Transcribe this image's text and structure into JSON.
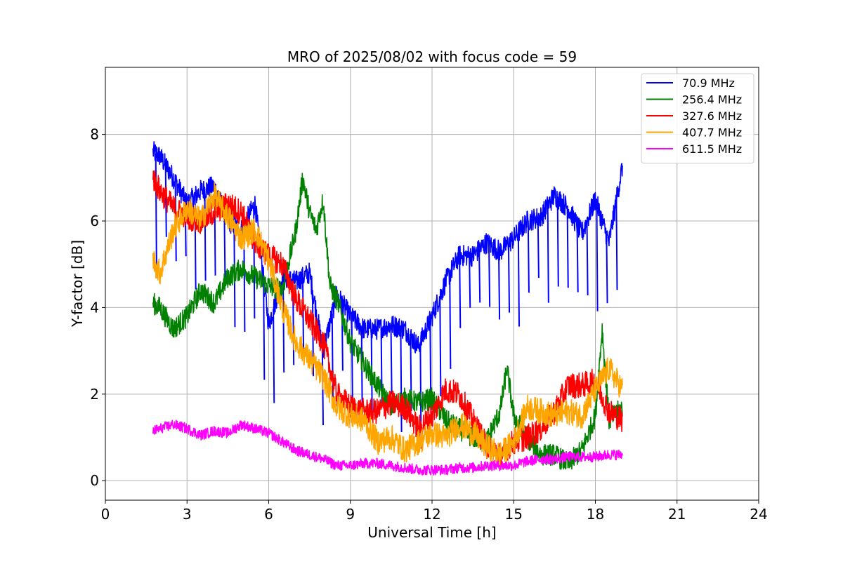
{
  "chart_data": {
    "type": "line",
    "title": "MRO of 2025/08/02 with focus code = 59",
    "xlabel": "Universal Time [h]",
    "ylabel": "Y-factor [dB]",
    "xlim": [
      0,
      24
    ],
    "ylim": [
      -0.45,
      9.55
    ],
    "xticks": [
      0,
      3,
      6,
      9,
      12,
      15,
      18,
      21,
      24
    ],
    "yticks": [
      0,
      2,
      4,
      6,
      8
    ],
    "grid": true,
    "legend_position": "top-right",
    "series": [
      {
        "name": " 70.9 MHz",
        "color": "#0000ff",
        "band": 0.25,
        "x": [
          1.75,
          2.0,
          2.5,
          3.0,
          3.5,
          4.0,
          4.5,
          5.0,
          5.5,
          6.0,
          6.5,
          7.0,
          7.5,
          8.0,
          8.5,
          9.0,
          9.5,
          10.0,
          10.5,
          11.0,
          11.5,
          12.0,
          12.5,
          13.0,
          13.5,
          14.0,
          14.5,
          15.0,
          15.5,
          16.0,
          16.5,
          17.0,
          17.5,
          18.0,
          18.5,
          19.0
        ],
        "y": [
          7.6,
          7.5,
          7.0,
          6.4,
          6.7,
          6.8,
          6.0,
          5.8,
          6.4,
          3.6,
          4.7,
          4.6,
          4.8,
          3.0,
          4.3,
          3.8,
          3.5,
          3.5,
          3.6,
          3.5,
          3.1,
          3.8,
          4.6,
          5.2,
          5.2,
          5.5,
          5.3,
          5.6,
          6.0,
          6.1,
          6.6,
          6.3,
          5.7,
          6.5,
          5.5,
          7.3
        ]
      },
      {
        "name": "256.4 MHz",
        "color": "#008000",
        "band": 0.25,
        "x": [
          1.75,
          2.0,
          2.5,
          3.0,
          3.5,
          4.0,
          4.5,
          5.0,
          5.5,
          6.0,
          6.5,
          7.0,
          7.25,
          7.5,
          7.75,
          8.0,
          8.25,
          8.5,
          9.0,
          9.5,
          10.0,
          10.5,
          11.0,
          11.5,
          12.0,
          12.5,
          13.0,
          13.5,
          14.0,
          14.5,
          14.75,
          15.0,
          15.5,
          16.0,
          16.5,
          17.0,
          17.5,
          18.0,
          18.25,
          18.5,
          19.0
        ],
        "y": [
          4.1,
          4.0,
          3.5,
          3.8,
          4.4,
          4.1,
          4.7,
          4.9,
          4.7,
          4.5,
          4.4,
          5.8,
          7.0,
          6.2,
          5.8,
          6.5,
          4.5,
          4.2,
          3.2,
          2.7,
          2.2,
          1.7,
          1.9,
          1.8,
          1.9,
          1.4,
          1.2,
          1.0,
          0.9,
          1.6,
          2.6,
          1.5,
          1.0,
          0.6,
          0.6,
          0.4,
          0.7,
          1.5,
          3.5,
          1.4,
          1.7
        ]
      },
      {
        "name": "327.6 MHz",
        "color": "#ff0000",
        "band": 0.3,
        "x": [
          1.75,
          2.0,
          2.5,
          3.0,
          3.5,
          4.0,
          4.5,
          5.0,
          5.5,
          6.0,
          6.5,
          7.0,
          7.5,
          8.0,
          8.5,
          9.0,
          9.5,
          10.0,
          10.5,
          11.0,
          11.5,
          12.0,
          12.5,
          13.0,
          13.5,
          14.0,
          14.5,
          15.0,
          15.5,
          16.0,
          16.5,
          17.0,
          17.5,
          18.0,
          18.5,
          19.0
        ],
        "y": [
          7.0,
          6.7,
          6.3,
          6.1,
          6.0,
          6.2,
          6.4,
          6.2,
          5.5,
          5.2,
          5.0,
          4.2,
          3.7,
          3.2,
          2.0,
          1.7,
          1.6,
          1.6,
          1.8,
          1.7,
          1.2,
          1.5,
          2.1,
          2.0,
          1.4,
          0.8,
          0.6,
          0.9,
          1.0,
          1.2,
          1.6,
          2.2,
          2.2,
          2.3,
          1.6,
          1.4
        ]
      },
      {
        "name": "407.7 MHz",
        "color": "#ffa500",
        "band": 0.3,
        "x": [
          1.75,
          2.0,
          2.5,
          3.0,
          3.5,
          4.0,
          4.5,
          5.0,
          5.5,
          6.0,
          6.5,
          7.0,
          7.5,
          8.0,
          8.5,
          9.0,
          9.5,
          10.0,
          10.5,
          11.0,
          11.5,
          12.0,
          12.5,
          13.0,
          13.5,
          14.0,
          14.5,
          15.0,
          15.5,
          16.0,
          16.5,
          17.0,
          17.5,
          18.0,
          18.5,
          19.0
        ],
        "y": [
          5.1,
          4.8,
          5.8,
          6.3,
          6.0,
          6.6,
          6.1,
          5.6,
          5.8,
          5.1,
          4.0,
          3.2,
          2.8,
          2.4,
          1.7,
          1.5,
          1.4,
          0.9,
          1.0,
          0.7,
          0.9,
          1.1,
          1.0,
          1.3,
          1.1,
          0.8,
          0.6,
          0.9,
          1.7,
          1.6,
          1.5,
          1.6,
          1.5,
          2.1,
          2.6,
          2.1
        ]
      },
      {
        "name": "611.5 MHz",
        "color": "#ff00ff",
        "band": 0.12,
        "x": [
          1.75,
          2.0,
          2.5,
          3.0,
          3.5,
          4.0,
          4.5,
          5.0,
          5.5,
          6.0,
          6.5,
          7.0,
          7.5,
          8.0,
          8.5,
          9.0,
          9.5,
          10.0,
          10.5,
          11.0,
          11.5,
          12.0,
          12.5,
          13.0,
          13.5,
          14.0,
          14.5,
          15.0,
          15.5,
          16.0,
          16.5,
          17.0,
          17.5,
          18.0,
          18.5,
          19.0
        ],
        "y": [
          1.15,
          1.2,
          1.3,
          1.2,
          1.05,
          1.15,
          1.1,
          1.3,
          1.2,
          1.1,
          0.9,
          0.7,
          0.6,
          0.5,
          0.35,
          0.35,
          0.4,
          0.4,
          0.35,
          0.3,
          0.25,
          0.25,
          0.25,
          0.3,
          0.3,
          0.35,
          0.35,
          0.35,
          0.45,
          0.5,
          0.5,
          0.55,
          0.55,
          0.55,
          0.6,
          0.6
        ]
      }
    ]
  }
}
